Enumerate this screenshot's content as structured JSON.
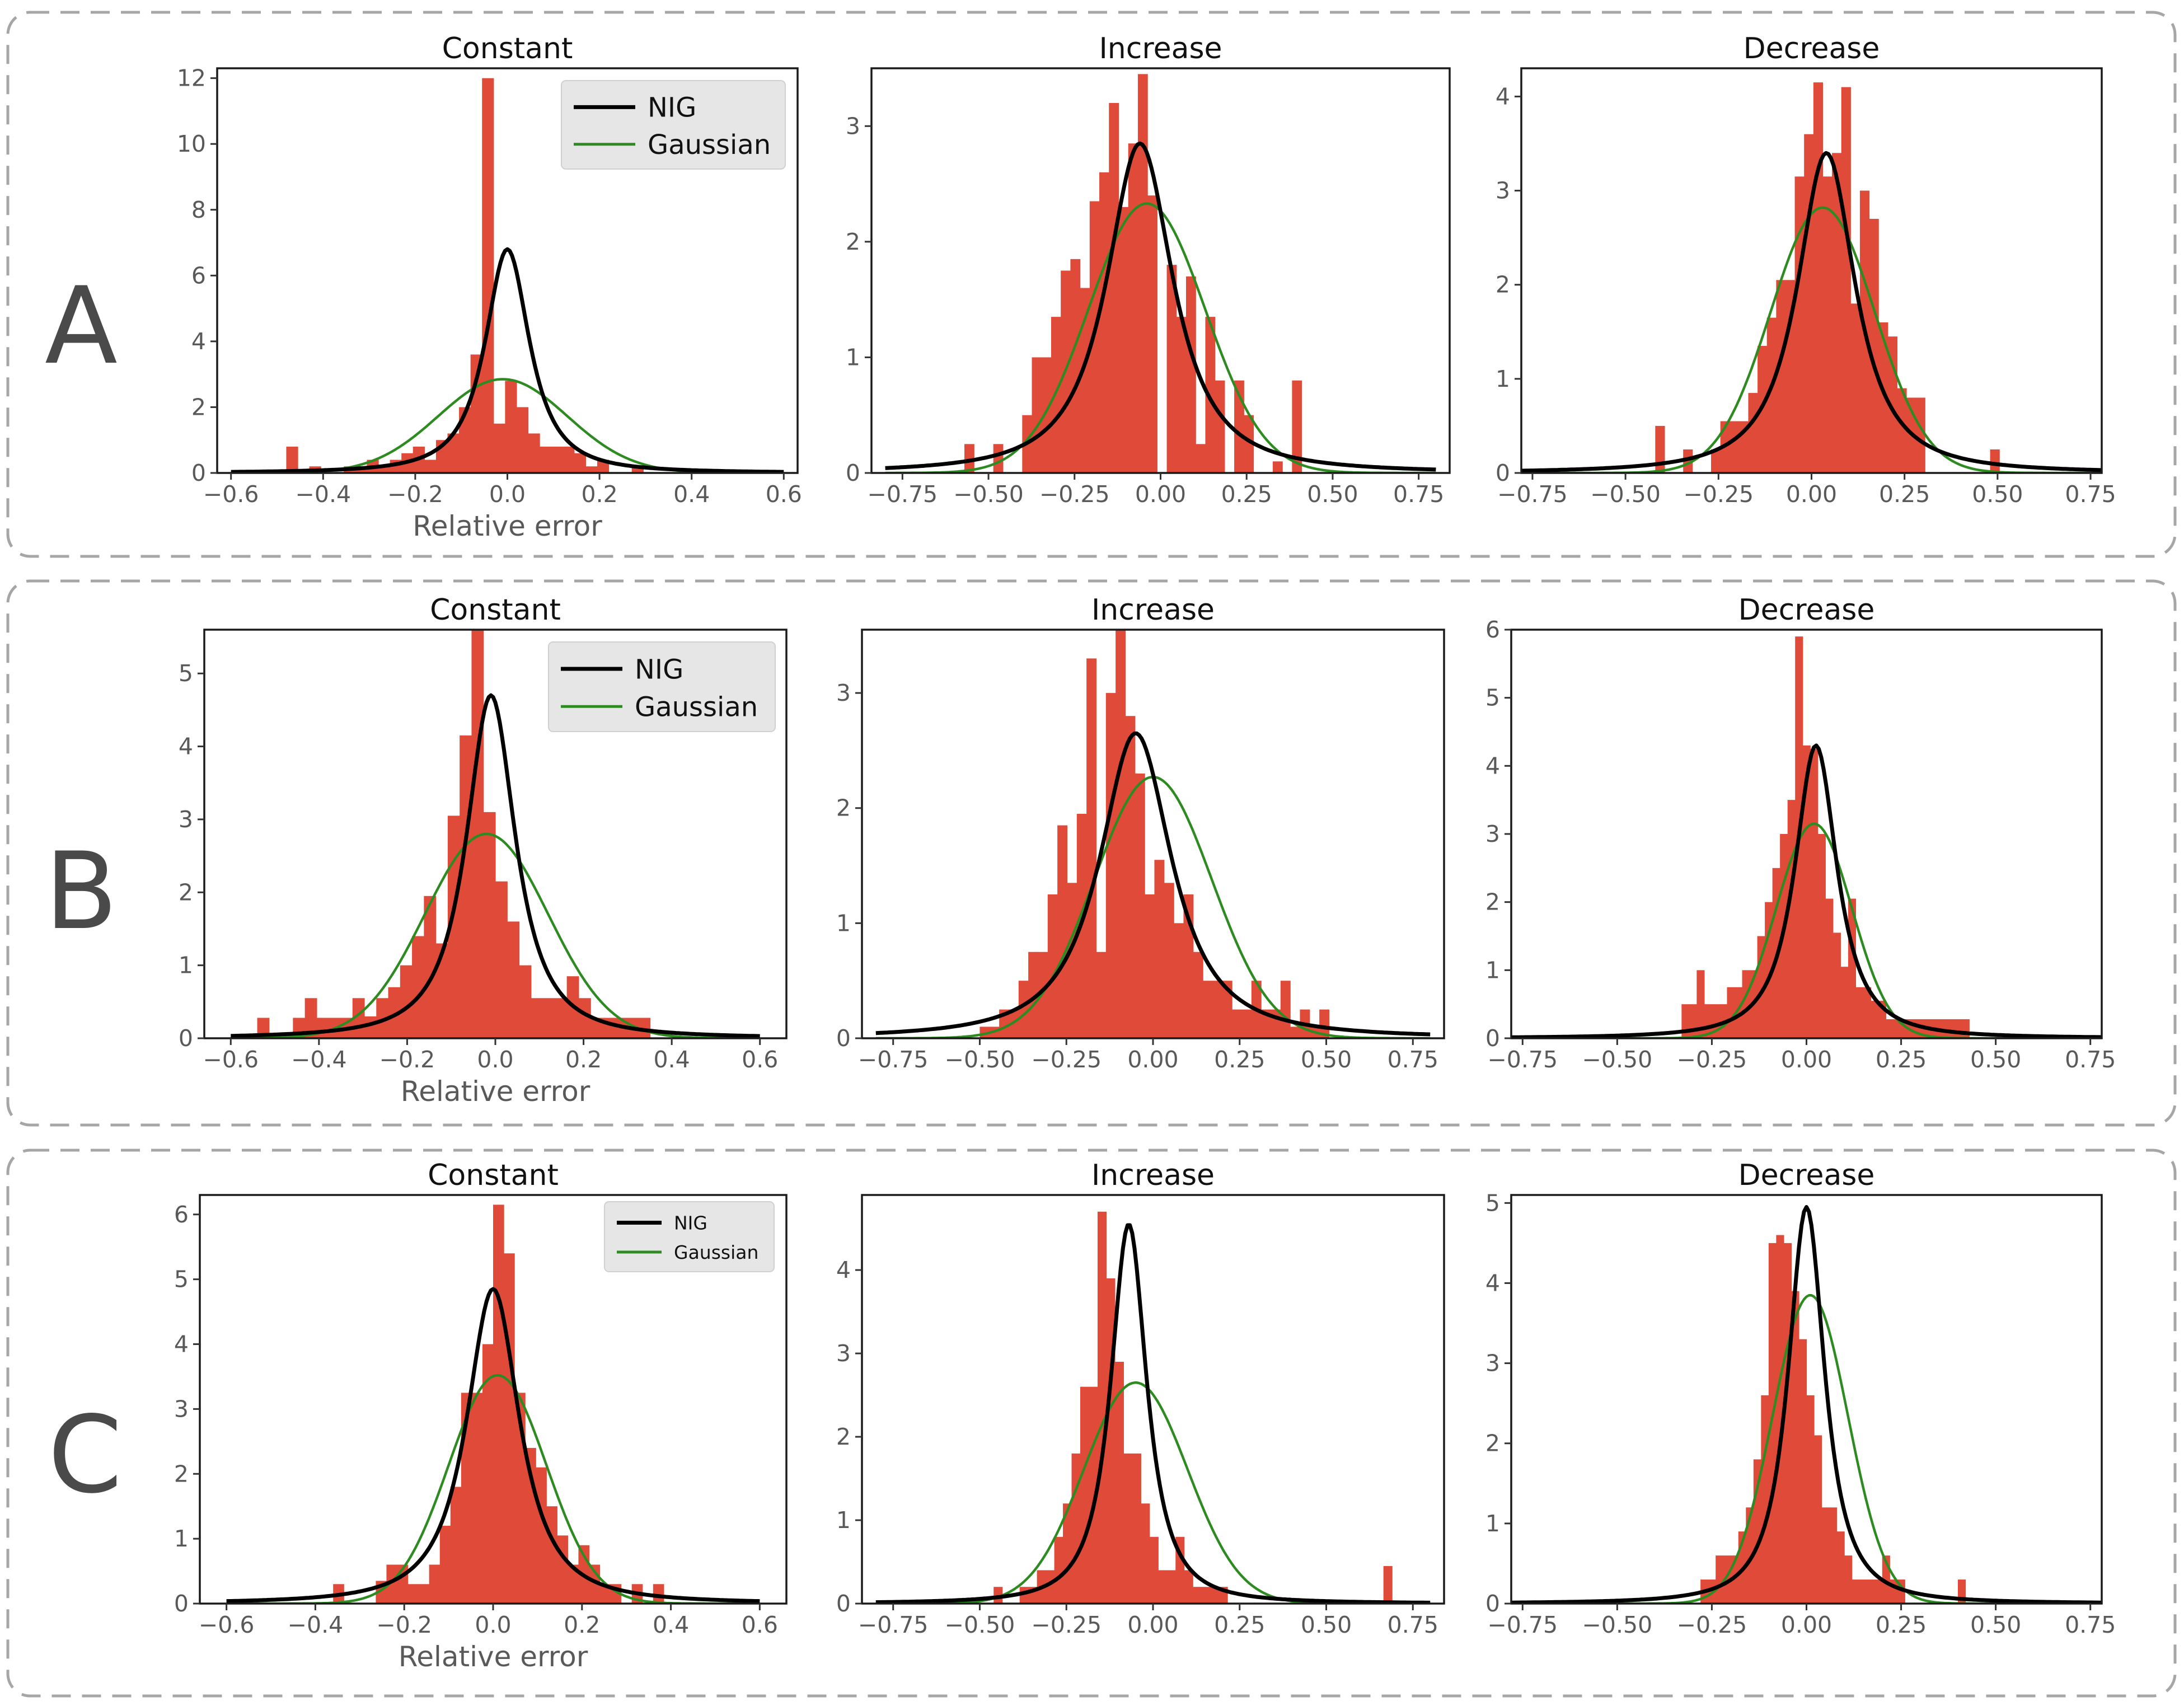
{
  "colors": {
    "histogram": "#e04a38",
    "nig": "#000000",
    "gaussian": "#2e8b22",
    "frame": "#a6a6a6"
  },
  "legend": {
    "nig_label": "NIG",
    "gaussian_label": "Gaussian"
  },
  "rows": [
    {
      "label": "A",
      "panels": [
        {
          "title": "Constant",
          "type": "bar",
          "xlim": [
            -0.63,
            0.63
          ],
          "ylim": [
            0,
            12.3
          ],
          "xticks": [
            -0.6,
            -0.4,
            -0.2,
            0.0,
            0.2,
            0.4,
            0.6
          ],
          "xtick_labels": [
            "−0.6",
            "−0.4",
            "−0.2",
            "0.0",
            "0.2",
            "0.4",
            "0.6"
          ],
          "yticks": [
            0,
            2,
            4,
            6,
            8,
            10,
            12
          ],
          "ytick_labels": [
            "0",
            "2",
            "4",
            "6",
            "8",
            "10",
            "12"
          ],
          "xlabel": "Relative error",
          "legend": true,
          "bins": {
            "start": -0.48,
            "width": 0.025,
            "counts": [
              0.8,
              0,
              0.2,
              0,
              0,
              0.2,
              0.2,
              0.4,
              0.2,
              0.4,
              0.6,
              0.8,
              0.4,
              1.0,
              1.2,
              2.0,
              3.6,
              12.0,
              1.5,
              2.8,
              2.0,
              1.2,
              0.8,
              0.8,
              0.8,
              0.6,
              0.2,
              0.4,
              0,
              0,
              0.2
            ]
          },
          "nig": {
            "mu": 0.0,
            "sigma": 0.065,
            "peak": 6.8
          },
          "gauss": {
            "mu": -0.01,
            "sigma": 0.14,
            "peak": 2.85
          }
        },
        {
          "title": "Increase",
          "type": "bar",
          "xlim": [
            -0.84,
            0.84
          ],
          "ylim": [
            0,
            3.5
          ],
          "xticks": [
            -0.75,
            -0.5,
            -0.25,
            0.0,
            0.25,
            0.5,
            0.75
          ],
          "xtick_labels": [
            "−0.75",
            "−0.50",
            "−0.25",
            "0.00",
            "0.25",
            "0.50",
            "0.75"
          ],
          "yticks": [
            0,
            1,
            2,
            3
          ],
          "ytick_labels": [
            "0",
            "1",
            "2",
            "3"
          ],
          "xlabel": "",
          "legend": false,
          "bins": {
            "start": -0.57,
            "width": 0.028,
            "counts": [
              0.25,
              0,
              0,
              0.25,
              0,
              0,
              0.5,
              1.0,
              1.0,
              1.35,
              1.75,
              1.85,
              1.6,
              2.35,
              2.6,
              3.2,
              2.3,
              2.85,
              3.45,
              2.4,
              0,
              1.8,
              1.35,
              1.7,
              0.25,
              1.35,
              0.8,
              0,
              0.8,
              0.5,
              0,
              0,
              0.1,
              0,
              0.8
            ]
          },
          "nig": {
            "mu": -0.06,
            "sigma": 0.13,
            "peak": 2.85
          },
          "gauss": {
            "mu": -0.04,
            "sigma": 0.17,
            "peak": 2.33
          }
        },
        {
          "title": "Decrease",
          "type": "bar",
          "xlim": [
            -0.78,
            0.78
          ],
          "ylim": [
            0,
            4.3
          ],
          "xticks": [
            -0.75,
            -0.5,
            -0.25,
            0.0,
            0.25,
            0.5,
            0.75
          ],
          "xtick_labels": [
            "−0.75",
            "−0.50",
            "−0.25",
            "0.00",
            "0.25",
            "0.50",
            "0.75"
          ],
          "yticks": [
            0,
            1,
            2,
            3,
            4
          ],
          "ytick_labels": [
            "0",
            "1",
            "2",
            "3",
            "4"
          ],
          "xlabel": "",
          "legend": false,
          "bins": {
            "start": -0.42,
            "width": 0.025,
            "counts": [
              0.5,
              0,
              0,
              0.25,
              0,
              0,
              0.25,
              0.55,
              0.55,
              0.55,
              0.85,
              1.35,
              1.65,
              2.05,
              2.05,
              3.15,
              3.6,
              4.15,
              3.15,
              3.4,
              4.1,
              1.8,
              3.0,
              2.7,
              1.6,
              1.45,
              0.9,
              0.8,
              0.8,
              0,
              0,
              0,
              0,
              0,
              0,
              0,
              0.25
            ]
          },
          "nig": {
            "mu": 0.04,
            "sigma": 0.105,
            "peak": 3.4
          },
          "gauss": {
            "mu": 0.03,
            "sigma": 0.14,
            "peak": 2.82
          }
        }
      ]
    },
    {
      "label": "B",
      "panels": [
        {
          "title": "Constant",
          "type": "bar",
          "xlim": [
            -0.66,
            0.66
          ],
          "ylim": [
            0,
            5.6
          ],
          "xticks": [
            -0.6,
            -0.4,
            -0.2,
            0.0,
            0.2,
            0.4,
            0.6
          ],
          "xtick_labels": [
            "−0.6",
            "−0.4",
            "−0.2",
            "0.0",
            "0.2",
            "0.4",
            "0.6"
          ],
          "yticks": [
            0,
            1,
            2,
            3,
            4,
            5
          ],
          "ytick_labels": [
            "0",
            "1",
            "2",
            "3",
            "4",
            "5"
          ],
          "xlabel": "Relative error",
          "legend": true,
          "bins": {
            "start": -0.54,
            "width": 0.027,
            "counts": [
              0.28,
              0,
              0,
              0.28,
              0.55,
              0.28,
              0.28,
              0.28,
              0.55,
              0.3,
              0.55,
              0.7,
              1.0,
              1.4,
              1.95,
              1.3,
              3.05,
              4.15,
              5.6,
              3.1,
              2.15,
              1.6,
              1.0,
              0.55,
              0.55,
              0.55,
              0.85,
              0.55,
              0.28,
              0.28,
              0.28,
              0.28,
              0.28
            ]
          },
          "nig": {
            "mu": -0.01,
            "sigma": 0.075,
            "peak": 4.7
          },
          "gauss": {
            "mu": -0.02,
            "sigma": 0.14,
            "peak": 2.8
          }
        },
        {
          "title": "Increase",
          "type": "bar",
          "xlim": [
            -0.84,
            0.84
          ],
          "ylim": [
            0,
            3.55
          ],
          "xticks": [
            -0.75,
            -0.5,
            -0.25,
            0.0,
            0.25,
            0.5,
            0.75
          ],
          "xtick_labels": [
            "−0.75",
            "−0.50",
            "−0.25",
            "0.00",
            "0.25",
            "0.50",
            "0.75"
          ],
          "yticks": [
            0,
            1,
            2,
            3
          ],
          "ytick_labels": [
            "0",
            "1",
            "2",
            "3"
          ],
          "xlabel": "",
          "legend": false,
          "bins": {
            "start": -0.5,
            "width": 0.028,
            "counts": [
              0.1,
              0.1,
              0.25,
              0.25,
              0.5,
              0.75,
              0.75,
              1.25,
              1.85,
              1.35,
              1.95,
              3.3,
              0.75,
              3.0,
              3.55,
              2.8,
              2.3,
              1.25,
              1.55,
              1.35,
              1.0,
              1.25,
              0.75,
              0.5,
              0.5,
              0.5,
              0.25,
              0.25,
              0.5,
              0.25,
              0.25,
              0.5,
              0.1,
              0.25,
              0.1,
              0.25
            ]
          },
          "nig": {
            "mu": -0.05,
            "sigma": 0.14,
            "peak": 2.65
          },
          "gauss": {
            "mu": 0.0,
            "sigma": 0.17,
            "peak": 2.27
          }
        },
        {
          "title": "Decrease",
          "type": "bar",
          "xlim": [
            -0.78,
            0.78
          ],
          "ylim": [
            0,
            6.0
          ],
          "xticks": [
            -0.75,
            -0.5,
            -0.25,
            0.0,
            0.25,
            0.5,
            0.75
          ],
          "xtick_labels": [
            "−0.75",
            "−0.50",
            "−0.25",
            "0.00",
            "0.25",
            "0.50",
            "0.75"
          ],
          "yticks": [
            0,
            1,
            2,
            3,
            4,
            5,
            6
          ],
          "ytick_labels": [
            "0",
            "1",
            "2",
            "3",
            "4",
            "5",
            "6"
          ],
          "xlabel": "",
          "legend": false,
          "bins": {
            "start": -0.33,
            "width": 0.02,
            "counts": [
              0.5,
              0.5,
              1.0,
              0.5,
              0.5,
              0.5,
              0.75,
              0.75,
              1.0,
              1.0,
              1.5,
              2.0,
              2.5,
              3.0,
              3.5,
              5.9,
              4.3,
              4.25,
              3.0,
              2.05,
              1.55,
              1.05,
              2.05,
              0.75,
              0.75,
              0.55,
              0.55,
              0.28,
              0.28,
              0.28,
              0.28,
              0.28,
              0.28,
              0.28,
              0.28,
              0.28,
              0.28,
              0.28
            ]
          },
          "nig": {
            "mu": 0.025,
            "sigma": 0.075,
            "peak": 4.3
          },
          "gauss": {
            "mu": 0.02,
            "sigma": 0.1,
            "peak": 3.15
          }
        }
      ]
    },
    {
      "label": "C",
      "panels": [
        {
          "title": "Constant",
          "type": "bar",
          "xlim": [
            -0.66,
            0.66
          ],
          "ylim": [
            0,
            6.3
          ],
          "xticks": [
            -0.6,
            -0.4,
            -0.2,
            0.0,
            0.2,
            0.4,
            0.6
          ],
          "xtick_labels": [
            "−0.6",
            "−0.4",
            "−0.2",
            "0.0",
            "0.2",
            "0.4",
            "0.6"
          ],
          "yticks": [
            0,
            1,
            2,
            3,
            4,
            5,
            6
          ],
          "ytick_labels": [
            "0",
            "1",
            "2",
            "3",
            "4",
            "5",
            "6"
          ],
          "xlabel": "Relative error",
          "legend": true,
          "bins": {
            "start": -0.36,
            "width": 0.024,
            "counts": [
              0.3,
              0,
              0,
              0,
              0.35,
              0.6,
              0.6,
              0.3,
              0.3,
              0.6,
              1.2,
              1.8,
              3.25,
              3.25,
              4.0,
              6.15,
              5.4,
              3.25,
              2.4,
              2.1,
              1.5,
              1.05,
              0.6,
              0.9,
              0.6,
              0.3,
              0.3,
              0,
              0.3,
              0,
              0.3
            ]
          },
          "nig": {
            "mu": 0.0,
            "sigma": 0.08,
            "peak": 4.85
          },
          "gauss": {
            "mu": 0.01,
            "sigma": 0.11,
            "peak": 3.52
          }
        },
        {
          "title": "Increase",
          "type": "bar",
          "xlim": [
            -0.84,
            0.84
          ],
          "ylim": [
            0,
            4.9
          ],
          "xticks": [
            -0.75,
            -0.5,
            -0.25,
            0.0,
            0.25,
            0.5,
            0.75
          ],
          "xtick_labels": [
            "−0.75",
            "−0.50",
            "−0.25",
            "0.00",
            "0.25",
            "0.50",
            "0.75"
          ],
          "yticks": [
            0,
            1,
            2,
            3,
            4
          ],
          "ytick_labels": [
            "0",
            "1",
            "2",
            "3",
            "4"
          ],
          "xlabel": "",
          "legend": false,
          "bins": {
            "start": -0.46,
            "width": 0.025,
            "counts": [
              0.2,
              0,
              0,
              0.2,
              0.2,
              0.4,
              0.4,
              0.8,
              1.2,
              1.8,
              2.6,
              2.6,
              4.7,
              3.9,
              2.9,
              1.8,
              1.8,
              1.2,
              0.8,
              0.4,
              0.4,
              0.8,
              0.4,
              0.2,
              0.2,
              0.2,
              0.2,
              0,
              0,
              0,
              0,
              0,
              0,
              0,
              0,
              0,
              0,
              0,
              0,
              0,
              0,
              0,
              0,
              0,
              0,
              0.45
            ]
          },
          "nig": {
            "mu": -0.07,
            "sigma": 0.07,
            "peak": 4.55
          },
          "gauss": {
            "mu": -0.05,
            "sigma": 0.15,
            "peak": 2.65
          }
        },
        {
          "title": "Decrease",
          "type": "bar",
          "xlim": [
            -0.78,
            0.78
          ],
          "ylim": [
            0,
            5.1
          ],
          "xticks": [
            -0.75,
            -0.5,
            -0.25,
            0.0,
            0.25,
            0.5,
            0.75
          ],
          "xtick_labels": [
            "−0.75",
            "−0.50",
            "−0.25",
            "0.00",
            "0.25",
            "0.50",
            "0.75"
          ],
          "yticks": [
            0,
            1,
            2,
            3,
            4,
            5
          ],
          "ytick_labels": [
            "0",
            "1",
            "2",
            "3",
            "4",
            "5"
          ],
          "xlabel": "",
          "legend": false,
          "bins": {
            "start": -0.28,
            "width": 0.02,
            "counts": [
              0.3,
              0.3,
              0.6,
              0.6,
              0.6,
              0.9,
              1.2,
              1.8,
              2.6,
              4.5,
              4.6,
              4.5,
              3.9,
              3.3,
              2.6,
              2.1,
              1.2,
              1.2,
              0.9,
              0.6,
              0.3,
              0.3,
              0.3,
              0.3,
              0.6,
              0.3,
              0.3,
              0,
              0,
              0,
              0,
              0,
              0,
              0,
              0.3
            ]
          },
          "nig": {
            "mu": 0.0,
            "sigma": 0.065,
            "peak": 4.95
          },
          "gauss": {
            "mu": 0.01,
            "sigma": 0.1,
            "peak": 3.85
          }
        }
      ]
    }
  ]
}
